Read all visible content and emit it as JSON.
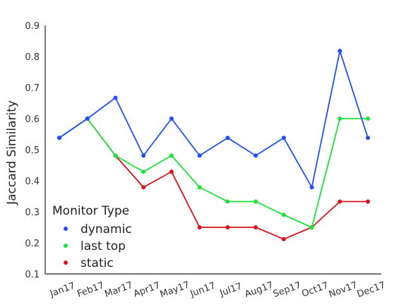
{
  "chart_data": {
    "type": "line",
    "title": "",
    "xlabel": "",
    "ylabel": "Jaccard Similarity",
    "categories": [
      "Jan17",
      "Feb17",
      "Mar17",
      "Apr17",
      "May17",
      "Jun17",
      "Jul17",
      "Aug17",
      "Sep17",
      "Oct17",
      "Nov17",
      "Dec17"
    ],
    "ylim": [
      0.1,
      0.9
    ],
    "yticks": [
      "0.1",
      "0.2",
      "0.3",
      "0.4",
      "0.5",
      "0.6",
      "0.7",
      "0.8",
      "0.9"
    ],
    "grid": false,
    "legend": {
      "title": "Monitor Type",
      "placement": "lower-left"
    },
    "series": [
      {
        "name": "dynamic",
        "color": "#1f4ef5",
        "values": [
          0.538,
          0.6,
          0.667,
          0.481,
          0.6,
          0.481,
          0.538,
          0.481,
          0.538,
          0.379,
          0.818,
          0.538
        ]
      },
      {
        "name": "last top",
        "color": "#19e33a",
        "values": [
          0.538,
          0.6,
          0.481,
          0.429,
          0.481,
          0.379,
          0.333,
          0.333,
          0.29,
          0.25,
          0.6,
          0.6
        ]
      },
      {
        "name": "static",
        "color": "#d9121b",
        "values": [
          0.538,
          0.6,
          0.481,
          0.379,
          0.429,
          0.25,
          0.25,
          0.25,
          0.212,
          0.25,
          0.333,
          0.333
        ]
      }
    ]
  }
}
